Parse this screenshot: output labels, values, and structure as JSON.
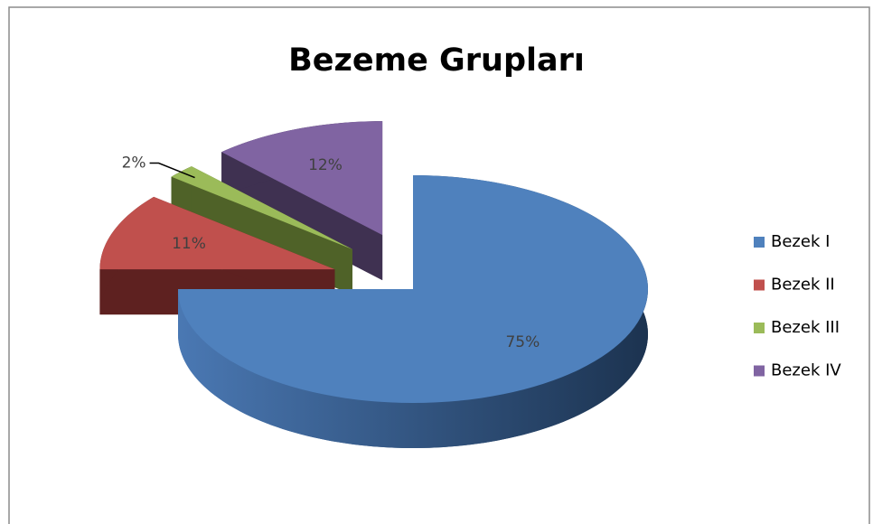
{
  "chart_data": {
    "type": "pie3d",
    "title": "Bezeme Grupları",
    "categories": [
      "Bezek I",
      "Bezek II",
      "Bezek III",
      "Bezek IV"
    ],
    "values": [
      75,
      11,
      2,
      12
    ],
    "value_labels": [
      "75%",
      "11%",
      "2%",
      "12%"
    ],
    "colors": [
      "#4f81bd",
      "#c0504d",
      "#9bbb59",
      "#8064a2"
    ],
    "legend": "right"
  }
}
